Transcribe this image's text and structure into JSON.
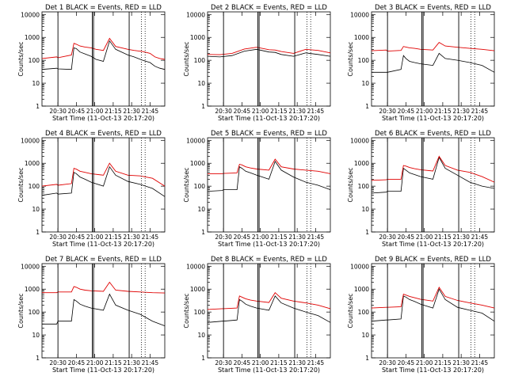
{
  "chart_data": {
    "type": "line",
    "legend_title_suffix": " BLACK = Events, RED = LLD",
    "xlabel": "Start Time (11-Oct-13 20:17:20)",
    "ylabel": "Counts/sec",
    "yscale": "log",
    "ylim": [
      1,
      13000
    ],
    "ytick_labels": [
      "1",
      "10",
      "100",
      "1000",
      "10000"
    ],
    "xlim_minutes": [
      0,
      100
    ],
    "xtick_labels": [
      "20:30",
      "20:45",
      "21:00",
      "21:15",
      "21:30",
      "21:45"
    ],
    "markers_solid": [
      "20:30",
      "20:58",
      "20:59",
      "21:28"
    ],
    "markers_dotted": [
      "21:38",
      "21:41"
    ],
    "colors": {
      "events": "#000000",
      "lld": "#e00000"
    },
    "panels": [
      {
        "title": "Det 1",
        "series": [
          {
            "name": "BLACK = Events",
            "x": [
              0,
              12,
              13,
              24,
              26,
              28,
              31,
              35,
              40,
              44,
              50,
              55,
              60,
              70,
              75,
              82,
              88,
              92,
              96,
              100
            ],
            "values": [
              40,
              45,
              42,
              40,
              350,
              320,
              230,
              190,
              150,
              110,
              90,
              700,
              300,
              170,
              140,
              100,
              80,
              55,
              45,
              40
            ]
          },
          {
            "name": "RED = LLD",
            "x": [
              0,
              12,
              13,
              24,
              26,
              28,
              31,
              35,
              40,
              44,
              50,
              55,
              60,
              70,
              75,
              82,
              88,
              92,
              96,
              100
            ],
            "values": [
              120,
              140,
              130,
              170,
              550,
              500,
              420,
              380,
              350,
              300,
              270,
              900,
              400,
              300,
              270,
              240,
              200,
              140,
              120,
              110
            ]
          }
        ]
      },
      {
        "title": "Det 2",
        "series": [
          {
            "name": "BLACK = Events",
            "x": [
              0,
              10,
              20,
              30,
              40,
              50,
              55,
              60,
              70,
              80,
              90,
              100
            ],
            "values": [
              150,
              140,
              160,
              250,
              300,
              230,
              220,
              180,
              150,
              210,
              180,
              150
            ]
          },
          {
            "name": "RED = LLD",
            "x": [
              0,
              10,
              20,
              30,
              40,
              50,
              55,
              60,
              70,
              80,
              90,
              100
            ],
            "values": [
              180,
              175,
              200,
              310,
              370,
              290,
              280,
              240,
              200,
              300,
              270,
              210
            ]
          }
        ]
      },
      {
        "title": "Det 3",
        "series": [
          {
            "name": "BLACK = Events",
            "x": [
              0,
              12,
              13,
              24,
              26,
              28,
              31,
              35,
              40,
              50,
              55,
              60,
              70,
              80,
              90,
              100
            ],
            "values": [
              30,
              30,
              30,
              40,
              160,
              120,
              90,
              80,
              70,
              60,
              200,
              120,
              100,
              80,
              60,
              30
            ]
          },
          {
            "name": "RED = LLD",
            "x": [
              0,
              12,
              13,
              24,
              26,
              28,
              31,
              35,
              40,
              50,
              55,
              60,
              70,
              80,
              90,
              100
            ],
            "values": [
              260,
              280,
              250,
              270,
              400,
              380,
              350,
              330,
              300,
              280,
              600,
              420,
              370,
              330,
              300,
              260
            ]
          }
        ]
      },
      {
        "title": "Det 4",
        "series": [
          {
            "name": "BLACK = Events",
            "x": [
              0,
              12,
              13,
              24,
              26,
              28,
              31,
              35,
              40,
              50,
              55,
              60,
              70,
              80,
              90,
              100
            ],
            "values": [
              40,
              50,
              45,
              50,
              400,
              350,
              250,
              200,
              150,
              100,
              700,
              300,
              160,
              120,
              80,
              35
            ]
          },
          {
            "name": "RED = LLD",
            "x": [
              0,
              12,
              13,
              24,
              26,
              28,
              31,
              35,
              40,
              50,
              55,
              60,
              70,
              80,
              90,
              100
            ],
            "values": [
              100,
              120,
              110,
              130,
              600,
              550,
              450,
              400,
              350,
              300,
              1000,
              450,
              300,
              280,
              220,
              100
            ]
          }
        ]
      },
      {
        "title": "Det 5",
        "series": [
          {
            "name": "BLACK = Events",
            "x": [
              0,
              12,
              13,
              24,
              26,
              28,
              31,
              35,
              40,
              50,
              55,
              60,
              70,
              80,
              90,
              100
            ],
            "values": [
              60,
              65,
              70,
              70,
              700,
              600,
              450,
              380,
              300,
              200,
              1200,
              500,
              250,
              150,
              110,
              70
            ]
          },
          {
            "name": "RED = LLD",
            "x": [
              0,
              12,
              13,
              24,
              26,
              28,
              31,
              35,
              40,
              50,
              55,
              60,
              70,
              80,
              90,
              100
            ],
            "values": [
              350,
              350,
              360,
              380,
              900,
              850,
              700,
              620,
              560,
              500,
              1500,
              700,
              560,
              500,
              450,
              350
            ]
          }
        ]
      },
      {
        "title": "Det 6",
        "series": [
          {
            "name": "BLACK = Events",
            "x": [
              0,
              12,
              13,
              24,
              26,
              28,
              31,
              35,
              40,
              50,
              55,
              60,
              70,
              80,
              90,
              100
            ],
            "values": [
              50,
              55,
              60,
              60,
              600,
              500,
              380,
              320,
              260,
              200,
              1800,
              600,
              300,
              150,
              100,
              80
            ]
          },
          {
            "name": "RED = LLD",
            "x": [
              0,
              12,
              13,
              24,
              26,
              28,
              31,
              35,
              40,
              50,
              55,
              60,
              70,
              80,
              90,
              100
            ],
            "values": [
              180,
              190,
              200,
              200,
              800,
              750,
              650,
              580,
              520,
              460,
              2000,
              800,
              500,
              400,
              260,
              150
            ]
          }
        ]
      },
      {
        "title": "Det 7",
        "series": [
          {
            "name": "BLACK = Events",
            "x": [
              0,
              12,
              13,
              24,
              26,
              28,
              31,
              35,
              40,
              50,
              55,
              60,
              70,
              80,
              90,
              100
            ],
            "values": [
              30,
              30,
              40,
              40,
              350,
              300,
              220,
              180,
              150,
              120,
              600,
              200,
              120,
              80,
              40,
              25
            ]
          },
          {
            "name": "RED = LLD",
            "x": [
              0,
              12,
              13,
              24,
              26,
              28,
              31,
              35,
              40,
              50,
              55,
              60,
              70,
              80,
              90,
              100
            ],
            "values": [
              700,
              700,
              750,
              750,
              1300,
              1200,
              1000,
              900,
              850,
              800,
              2000,
              900,
              800,
              750,
              700,
              680
            ]
          }
        ]
      },
      {
        "title": "Det 8",
        "series": [
          {
            "name": "BLACK = Events",
            "x": [
              0,
              12,
              13,
              24,
              26,
              28,
              31,
              35,
              40,
              50,
              55,
              60,
              70,
              80,
              90,
              100
            ],
            "values": [
              35,
              40,
              40,
              45,
              350,
              300,
              220,
              180,
              150,
              120,
              500,
              250,
              150,
              100,
              70,
              35
            ]
          },
          {
            "name": "RED = LLD",
            "x": [
              0,
              12,
              13,
              24,
              26,
              28,
              31,
              35,
              40,
              50,
              55,
              60,
              70,
              80,
              90,
              100
            ],
            "values": [
              130,
              140,
              140,
              150,
              500,
              450,
              380,
              330,
              300,
              260,
              700,
              400,
              300,
              250,
              200,
              140
            ]
          }
        ]
      },
      {
        "title": "Det 9",
        "series": [
          {
            "name": "BLACK = Events",
            "x": [
              0,
              12,
              13,
              24,
              26,
              28,
              31,
              35,
              40,
              50,
              55,
              60,
              70,
              80,
              90,
              100
            ],
            "values": [
              40,
              45,
              45,
              50,
              500,
              450,
              350,
              290,
              220,
              150,
              1000,
              350,
              160,
              120,
              90,
              40
            ]
          },
          {
            "name": "RED = LLD",
            "x": [
              0,
              12,
              13,
              24,
              26,
              28,
              31,
              35,
              40,
              50,
              55,
              60,
              70,
              80,
              90,
              100
            ],
            "values": [
              150,
              160,
              160,
              170,
              600,
              550,
              480,
              420,
              360,
              300,
              1200,
              480,
              320,
              250,
              200,
              150
            ]
          }
        ]
      }
    ]
  }
}
